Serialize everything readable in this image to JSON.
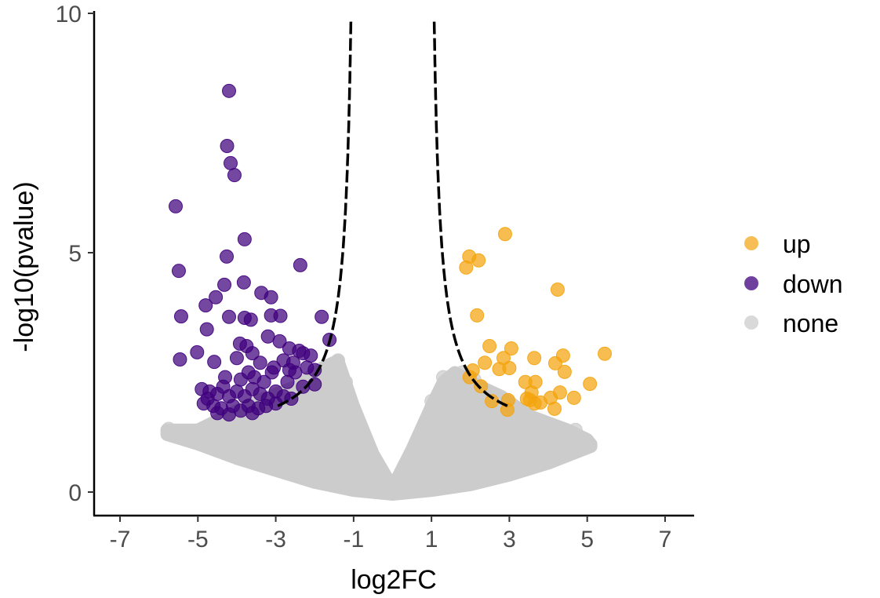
{
  "chart_data": {
    "type": "scatter",
    "title": "",
    "xlabel": "log2FC",
    "ylabel": "-log10(pvalue)",
    "xlim": [
      -7.7,
      7.7
    ],
    "ylim": [
      -0.45,
      10.1
    ],
    "xticks": [
      "-7",
      "-5",
      "-3",
      "-1",
      "1",
      "3",
      "5",
      "7"
    ],
    "xtick_values": [
      -7,
      -5,
      -3,
      -1,
      1,
      3,
      5,
      7
    ],
    "yticks": [
      "0",
      "5",
      "10"
    ],
    "ytick_values": [
      0,
      5,
      10
    ],
    "grid": false,
    "legend": {
      "placement": "right",
      "entries": [
        {
          "label": "up",
          "color": "#f4a30d"
        },
        {
          "label": "down",
          "color": "#3f007d"
        },
        {
          "label": "none",
          "color": "#cccccc"
        }
      ]
    },
    "series": [
      {
        "name": "none",
        "color": "#cccccc",
        "dense_region_upper": [
          [
            -5.8,
            1.3
          ],
          [
            -5,
            1.3
          ],
          [
            -4.5,
            1.5
          ],
          [
            -3.5,
            1.9
          ],
          [
            -2.5,
            2.2
          ],
          [
            -1.8,
            2.6
          ],
          [
            -1.4,
            2.75
          ],
          [
            -1,
            1.8
          ],
          [
            -0.5,
            0.8
          ],
          [
            0,
            0.1
          ],
          [
            0.5,
            0.9
          ],
          [
            1,
            1.8
          ],
          [
            1.3,
            2.3
          ],
          [
            1.6,
            2.5
          ],
          [
            2,
            2.3
          ],
          [
            2.8,
            2.0
          ],
          [
            3.5,
            1.6
          ],
          [
            4.5,
            1.3
          ],
          [
            5,
            1.1
          ],
          [
            5.1,
            1.0
          ]
        ],
        "dense_region_lower": [
          [
            5.1,
            0.95
          ],
          [
            4,
            0.6
          ],
          [
            3,
            0.35
          ],
          [
            2,
            0.15
          ],
          [
            1,
            0.03
          ],
          [
            0,
            -0.05
          ],
          [
            -1,
            0.03
          ],
          [
            -2,
            0.2
          ],
          [
            -3,
            0.45
          ],
          [
            -4,
            0.7
          ],
          [
            -5,
            1.0
          ],
          [
            -5.8,
            1.2
          ]
        ],
        "points": [
          [
            -5.75,
            1.32
          ],
          [
            -5.5,
            1.22
          ],
          [
            -5.3,
            1.18
          ],
          [
            -5.1,
            1.12
          ],
          [
            -4.9,
            1.05
          ],
          [
            -4.7,
            0.98
          ],
          [
            -4.4,
            1.2
          ],
          [
            -4.1,
            1.0
          ],
          [
            -3.8,
            1.4
          ],
          [
            -3.2,
            1.6
          ],
          [
            -2.6,
            1.9
          ],
          [
            -2.0,
            2.3
          ],
          [
            -1.6,
            2.6
          ],
          [
            -1.4,
            2.75
          ],
          [
            -1.2,
            2.3
          ],
          [
            -0.8,
            1.2
          ],
          [
            -0.4,
            0.6
          ],
          [
            0.3,
            0.5
          ],
          [
            0.7,
            1.2
          ],
          [
            1.0,
            1.9
          ],
          [
            1.3,
            2.4
          ],
          [
            1.5,
            2.4
          ],
          [
            1.8,
            2.5
          ],
          [
            2.1,
            2.35
          ],
          [
            2.4,
            2.1
          ],
          [
            2.7,
            1.9
          ],
          [
            3.0,
            1.75
          ],
          [
            3.3,
            1.5
          ],
          [
            3.6,
            1.35
          ],
          [
            3.9,
            1.25
          ],
          [
            4.2,
            1.15
          ],
          [
            4.5,
            1.25
          ],
          [
            4.7,
            1.1
          ],
          [
            4.9,
            1.05
          ],
          [
            5.0,
            0.98
          ],
          [
            4.7,
            1.3
          ],
          [
            1.0,
            0.2
          ],
          [
            -1.0,
            0.25
          ],
          [
            0.95,
            0.05
          ],
          [
            -2.2,
            1.5
          ],
          [
            2.3,
            1.6
          ],
          [
            -3.5,
            1.2
          ],
          [
            3.4,
            1.1
          ]
        ]
      },
      {
        "name": "down",
        "color": "#3f007d",
        "points": [
          [
            -4.2,
            8.38
          ],
          [
            -4.25,
            7.23
          ],
          [
            -4.16,
            6.87
          ],
          [
            -4.06,
            6.62
          ],
          [
            -5.57,
            5.97
          ],
          [
            -3.8,
            5.28
          ],
          [
            -4.26,
            4.92
          ],
          [
            -5.49,
            4.62
          ],
          [
            -2.37,
            4.74
          ],
          [
            -3.82,
            4.38
          ],
          [
            -4.32,
            4.33
          ],
          [
            -3.37,
            4.16
          ],
          [
            -3.12,
            4.07
          ],
          [
            -4.54,
            4.07
          ],
          [
            -4.8,
            3.9
          ],
          [
            -5.43,
            3.67
          ],
          [
            -4.2,
            3.66
          ],
          [
            -3.8,
            3.64
          ],
          [
            -3.64,
            3.6
          ],
          [
            -2.88,
            3.68
          ],
          [
            -3.12,
            3.69
          ],
          [
            -1.82,
            3.66
          ],
          [
            -4.77,
            3.4
          ],
          [
            -1.62,
            3.18
          ],
          [
            -5.02,
            2.92
          ],
          [
            -5.46,
            2.77
          ],
          [
            -4.58,
            2.72
          ],
          [
            -3.92,
            3.1
          ],
          [
            -3.75,
            3.05
          ],
          [
            -3.2,
            3.25
          ],
          [
            -2.9,
            3.15
          ],
          [
            -2.65,
            3.0
          ],
          [
            -2.4,
            2.95
          ],
          [
            -2.1,
            2.85
          ],
          [
            -3.6,
            2.9
          ],
          [
            -4.0,
            2.8
          ],
          [
            -3.4,
            2.7
          ],
          [
            -2.8,
            2.75
          ],
          [
            -2.2,
            2.6
          ],
          [
            -2.5,
            2.5
          ],
          [
            -3.1,
            2.5
          ],
          [
            -3.7,
            2.5
          ],
          [
            -4.3,
            2.4
          ],
          [
            -3.9,
            2.35
          ],
          [
            -3.3,
            2.3
          ],
          [
            -2.7,
            2.3
          ],
          [
            -2.3,
            2.2
          ],
          [
            -2.0,
            2.55
          ],
          [
            -4.9,
            2.15
          ],
          [
            -4.7,
            2.1
          ],
          [
            -4.5,
            2.05
          ],
          [
            -4.2,
            2.0
          ],
          [
            -4.0,
            2.1
          ],
          [
            -3.8,
            2.0
          ],
          [
            -3.6,
            2.15
          ],
          [
            -3.4,
            2.05
          ],
          [
            -3.2,
            1.95
          ],
          [
            -3.0,
            2.1
          ],
          [
            -2.8,
            2.0
          ],
          [
            -2.6,
            1.95
          ],
          [
            -4.85,
            1.85
          ],
          [
            -4.6,
            1.8
          ],
          [
            -4.4,
            1.75
          ],
          [
            -4.1,
            1.8
          ],
          [
            -3.9,
            1.7
          ],
          [
            -3.7,
            1.8
          ],
          [
            -3.45,
            1.75
          ],
          [
            -3.25,
            1.8
          ],
          [
            -3.0,
            1.85
          ],
          [
            -4.5,
            1.65
          ],
          [
            -4.2,
            1.62
          ],
          [
            -3.6,
            1.65
          ],
          [
            -4.75,
            1.95
          ],
          [
            -4.35,
            2.2
          ],
          [
            -3.55,
            2.4
          ],
          [
            -3.05,
            2.6
          ],
          [
            -2.55,
            2.7
          ],
          [
            -2.0,
            2.25
          ],
          [
            -2.3,
            2.9
          ],
          [
            -2.65,
            2.55
          ]
        ]
      },
      {
        "name": "up",
        "color": "#f4a30d",
        "points": [
          [
            2.89,
            5.39
          ],
          [
            1.97,
            4.92
          ],
          [
            2.21,
            4.84
          ],
          [
            1.89,
            4.69
          ],
          [
            4.24,
            4.23
          ],
          [
            2.17,
            3.69
          ],
          [
            2.49,
            3.05
          ],
          [
            3.05,
            3.0
          ],
          [
            5.45,
            2.89
          ],
          [
            4.38,
            2.85
          ],
          [
            3.64,
            2.8
          ],
          [
            2.85,
            2.8
          ],
          [
            2.37,
            2.7
          ],
          [
            4.18,
            2.69
          ],
          [
            2.74,
            2.57
          ],
          [
            3.0,
            2.59
          ],
          [
            2.06,
            2.54
          ],
          [
            4.42,
            2.51
          ],
          [
            3.41,
            2.3
          ],
          [
            5.07,
            2.26
          ],
          [
            3.67,
            2.3
          ],
          [
            2.27,
            2.21
          ],
          [
            4.3,
            2.08
          ],
          [
            3.57,
            2.08
          ],
          [
            4.06,
            1.97
          ],
          [
            4.66,
            1.97
          ],
          [
            2.97,
            1.92
          ],
          [
            3.53,
            1.92
          ],
          [
            3.8,
            1.87
          ],
          [
            2.95,
            1.72
          ],
          [
            4.16,
            1.74
          ],
          [
            3.45,
            1.95
          ],
          [
            3.65,
            1.85
          ],
          [
            2.55,
            1.9
          ],
          [
            1.98,
            2.4
          ]
        ]
      }
    ],
    "threshold_curve": {
      "style": "dashed",
      "color": "#000000",
      "formula": "y = 1.074 + 1.488/(|x| - 0.9)",
      "x_range_abs": [
        1.07,
        2.95
      ]
    }
  }
}
